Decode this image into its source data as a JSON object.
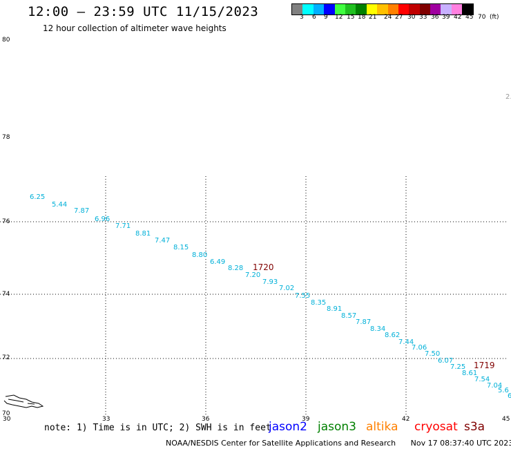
{
  "header": {
    "title": "12:00 – 23:59 UTC 11/15/2023",
    "subtitle": "12 hour collection of altimeter wave heights"
  },
  "scale": {
    "colors": [
      "#808080",
      "#00ffff",
      "#00b0ff",
      "#0000ff",
      "#40ff40",
      "#20c020",
      "#008000",
      "#ffff00",
      "#ffc000",
      "#ff8000",
      "#ff0000",
      "#c00000",
      "#800000",
      "#a000a0",
      "#c8b0ff",
      "#ff80e0",
      "#000000"
    ],
    "labels": [
      "3",
      "6",
      "9",
      "12",
      "15",
      "18",
      "21",
      "24",
      "27",
      "30",
      "33",
      "36",
      "39",
      "42",
      "45",
      "70",
      "(ft)"
    ]
  },
  "axes": {
    "x_ticks": [
      "30",
      "33",
      "36",
      "39",
      "42",
      "45"
    ],
    "y_ticks": [
      "80",
      "78",
      "76",
      "74",
      "72",
      "70"
    ]
  },
  "edge_label": "2.",
  "track": {
    "color": "#00b0d8",
    "values": [
      "6.25",
      "5.44",
      "7.87",
      "6.96",
      "7.71",
      "8.81",
      "7.47",
      "8.15",
      "8.80",
      "6.49",
      "8.28",
      "7.20",
      "7.93",
      "7.02",
      "7.55",
      "8.35",
      "8.91",
      "8.57",
      "7.87",
      "8.34",
      "8.62",
      "7.44",
      "7.06",
      "7.50",
      "6.07",
      "7.25",
      "8.61",
      "7.54",
      "7.04",
      "5.6",
      "6"
    ]
  },
  "time_marks": [
    {
      "label": "1720",
      "color": "#800000"
    },
    {
      "label": "1719",
      "color": "#800000"
    }
  ],
  "note": "note: 1) Time is in UTC; 2) SWH is in feet",
  "legend": [
    {
      "label": "jason2",
      "color": "#0000ff"
    },
    {
      "label": "jason3",
      "color": "#008000"
    },
    {
      "label": "altika",
      "color": "#ff8000"
    },
    {
      "label": "cryosat",
      "color": "#ff0000"
    },
    {
      "label": "s3a",
      "color": "#800000"
    }
  ],
  "footer": {
    "org": "NOAA/NESDIS Center for Satellite Applications and Research",
    "timestamp": "Nov 17 08:37:40 UTC 2023"
  }
}
